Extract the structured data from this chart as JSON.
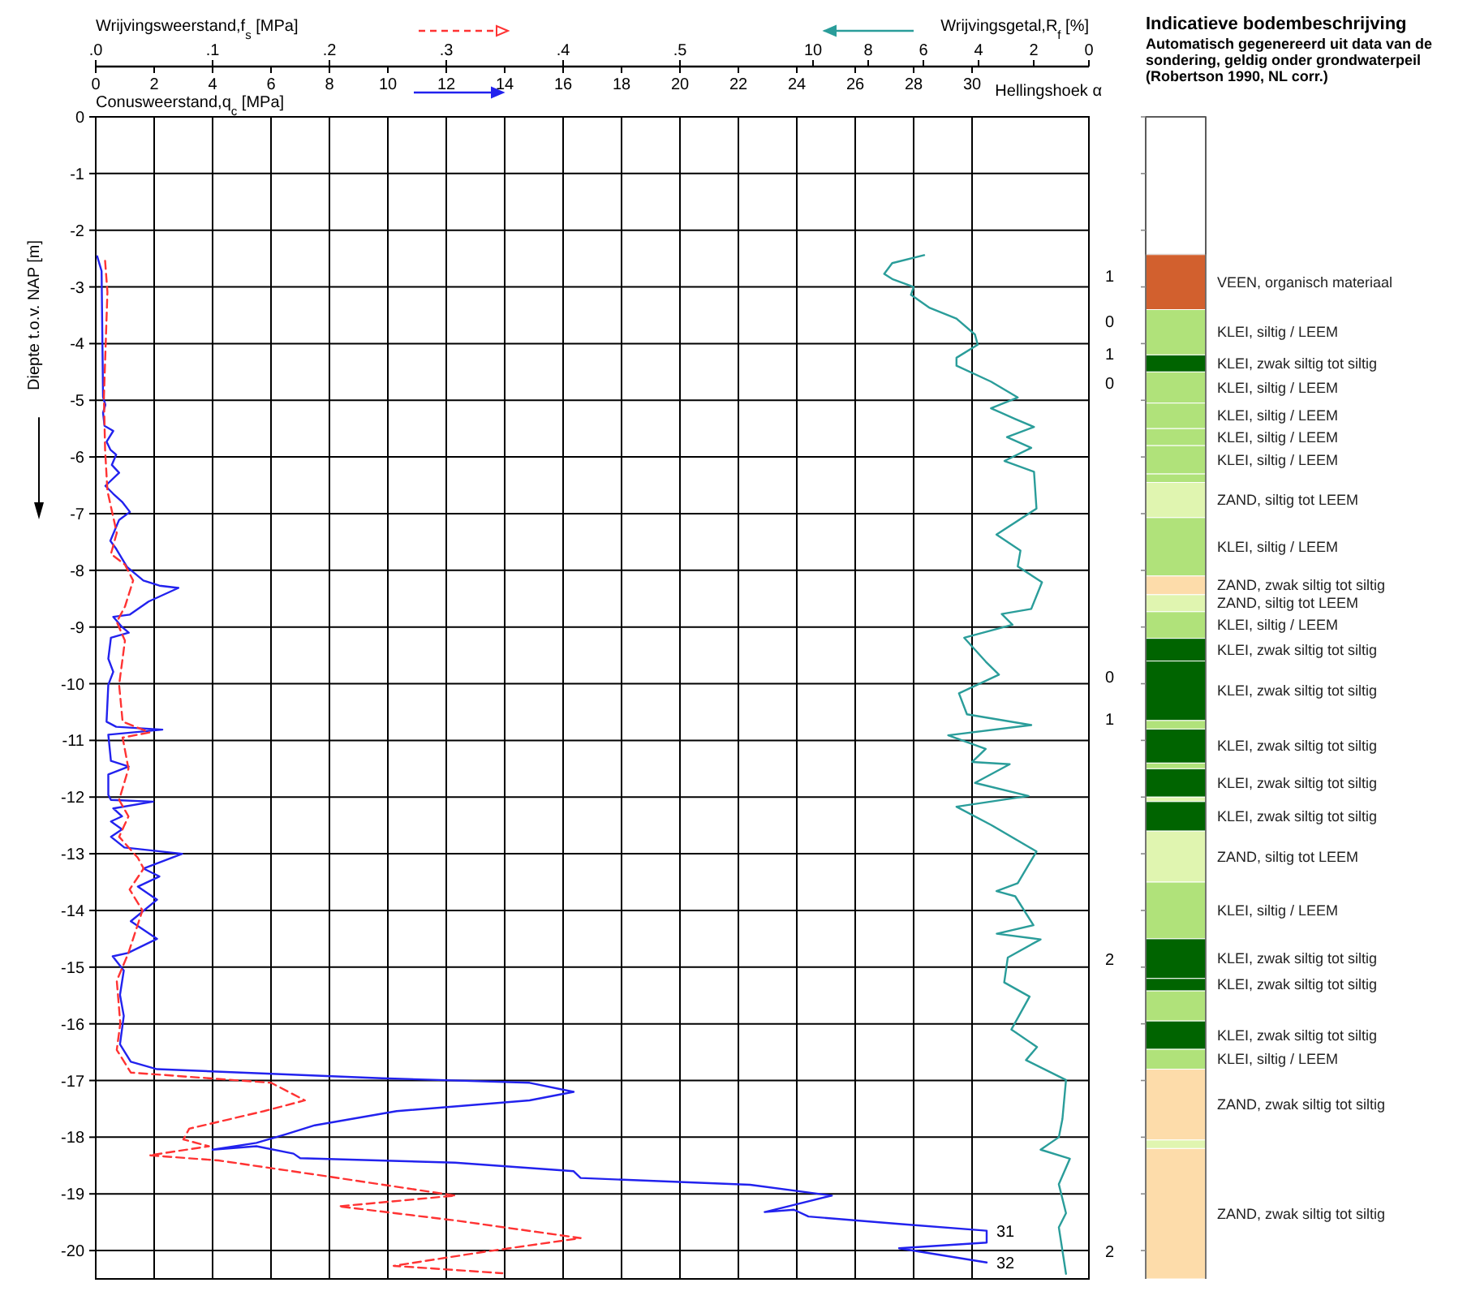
{
  "chart_data": [
    {
      "type": "line",
      "xlabel": "Conusweerstand,q$_{c}$ [MPa]",
      "x2label": "Wrijvingsweerstand,f$_{s}$ [MPa]",
      "ylabel": "Diepte t.o.v. NAP [m]",
      "xlim": [
        0,
        34
      ],
      "xticks": [
        0,
        2,
        4,
        6,
        8,
        10,
        12,
        14,
        16,
        18,
        20,
        22,
        24,
        26,
        28,
        30
      ],
      "x2lim": [
        0,
        0.85
      ],
      "x2ticks": [
        {
          "value": 0,
          "label": ".0"
        },
        {
          "value": 0.1,
          "label": ".1"
        },
        {
          "value": 0.2,
          "label": ".2"
        },
        {
          "value": 0.3,
          "label": ".3"
        },
        {
          "value": 0.4,
          "label": ".4"
        },
        {
          "value": 0.5,
          "label": ".5"
        }
      ],
      "ylim": [
        -20.5,
        0
      ],
      "yticks": [
        0,
        -1,
        -2,
        -3,
        -4,
        -5,
        -6,
        -7,
        -8,
        -9,
        -10,
        -11,
        -12,
        -13,
        -14,
        -15,
        -16,
        -17,
        -18,
        -19,
        -20
      ],
      "grid": true,
      "marker": "none",
      "series": [
        {
          "color": "#2222ee",
          "line_style": "solid",
          "x": [
            0.05,
            0.2,
            0.25,
            0.33,
            0.25,
            0.3,
            0.6,
            0.37,
            0.5,
            0.7,
            0.55,
            0.8,
            0.33,
            0.6,
            0.9,
            1.17,
            0.8,
            0.5,
            0.7,
            1.07,
            1.63,
            2.18,
            2.83,
            1.81,
            1.17,
            0.6,
            0.9,
            1.13,
            0.52,
            0.43,
            0.6,
            0.43,
            0.37,
            0.7,
            2.28,
            0.43,
            0.52,
            1.13,
            0.43,
            0.43,
            0.52,
            1.96,
            0.6,
            0.9,
            0.52,
            0.9,
            0.52,
            0.98,
            2.96,
            1.63,
            2.18,
            1.44,
            2.1,
            1.2,
            2.1,
            1.1,
            0.58,
            0.96,
            0.83,
            0.96,
            0.83,
            1.2,
            2.1,
            9.8,
            14.85,
            16.36,
            14.85,
            10.3,
            7.5,
            6.5,
            5.5,
            4.0,
            5.5,
            6.77,
            7.0,
            12.3,
            16.36,
            16.6,
            22.4,
            25.2,
            23.7,
            22.9,
            23.9,
            24.4,
            27.5,
            30.5,
            30.5,
            27.5,
            30.5
          ],
          "values": [
            -2.46,
            -2.72,
            -4.94,
            -5.08,
            -5.22,
            -5.45,
            -5.54,
            -5.73,
            -5.87,
            -5.96,
            -6.14,
            -6.28,
            -6.51,
            -6.65,
            -6.79,
            -6.97,
            -7.11,
            -7.48,
            -7.62,
            -7.94,
            -8.18,
            -8.27,
            -8.31,
            -8.55,
            -8.78,
            -8.82,
            -9.0,
            -9.1,
            -9.19,
            -9.56,
            -9.79,
            -10.02,
            -10.67,
            -10.76,
            -10.81,
            -10.9,
            -11.36,
            -11.46,
            -11.6,
            -11.96,
            -12.05,
            -12.08,
            -12.2,
            -12.34,
            -12.43,
            -12.57,
            -12.7,
            -12.89,
            -13.0,
            -13.26,
            -13.4,
            -13.58,
            -13.81,
            -14.19,
            -14.5,
            -14.75,
            -14.81,
            -15.06,
            -15.49,
            -15.86,
            -16.36,
            -16.67,
            -16.8,
            -16.96,
            -17.04,
            -17.2,
            -17.35,
            -17.54,
            -17.79,
            -17.95,
            -18.1,
            -18.22,
            -18.16,
            -18.29,
            -18.37,
            -18.45,
            -18.6,
            -18.72,
            -18.84,
            -19.03,
            -19.22,
            -19.32,
            -19.28,
            -19.4,
            -19.53,
            -19.65,
            -19.86,
            -19.96,
            -20.21
          ]
        },
        {
          "color": "#ff3333",
          "line_style": "dashed",
          "axis": "x2",
          "x": [
            0.008,
            0.01,
            0.007,
            0.008,
            0.01,
            0.018,
            0.013,
            0.025,
            0.032,
            0.025,
            0.018,
            0.025,
            0.02,
            0.023,
            0.046,
            0.023,
            0.028,
            0.02,
            0.028,
            0.02,
            0.036,
            0.041,
            0.029,
            0.04,
            0.034,
            0.028,
            0.018,
            0.021,
            0.018,
            0.03,
            0.15,
            0.179,
            0.144,
            0.08,
            0.075,
            0.097,
            0.046,
            0.105,
            0.188,
            0.308,
            0.208,
            0.308,
            0.415,
            0.333,
            0.255,
            0.348
          ],
          "values": [
            -2.54,
            -3.09,
            -4.94,
            -5.87,
            -6.6,
            -7.34,
            -7.71,
            -7.9,
            -8.18,
            -8.64,
            -8.91,
            -9.24,
            -10.02,
            -10.67,
            -10.86,
            -10.95,
            -11.5,
            -12.05,
            -12.34,
            -12.7,
            -13.07,
            -13.26,
            -13.63,
            -14.0,
            -14.37,
            -14.75,
            -15.24,
            -15.99,
            -16.46,
            -16.86,
            -17.04,
            -17.35,
            -17.54,
            -17.85,
            -18.04,
            -18.16,
            -18.32,
            -18.41,
            -18.66,
            -19.03,
            -19.22,
            -19.47,
            -19.78,
            -20.02,
            -20.27,
            -20.4
          ]
        }
      ],
      "annotations": [
        "Hellingshoek α",
        "1",
        "0",
        "1",
        "0",
        "0",
        "1",
        "2",
        "2",
        {
          "text": "31",
          "x": 30.5,
          "y": -19.65
        },
        {
          "text": "32",
          "x": 30.5,
          "y": -20.21
        }
      ]
    },
    {
      "type": "line",
      "xlabel": "Wrijvingsgetal,R$_{f}$ [%]",
      "xlim": [
        36,
        0
      ],
      "xticks": [
        10,
        8,
        6,
        4,
        2,
        0
      ],
      "ylim": [
        -20.5,
        0
      ],
      "tick_labels": "x",
      "series": [
        {
          "color": "#2a9d9a",
          "line_style": "solid",
          "x": [
            5.97,
            7.13,
            7.42,
            7.13,
            6.35,
            6.45,
            5.77,
            4.8,
            4.13,
            4.03,
            4.8,
            4.8,
            3.55,
            2.58,
            3.55,
            2.67,
            1.99,
            2.97,
            2.09,
            3.06,
            1.99,
            1.9,
            3.35,
            2.48,
            2.58,
            1.7,
            2.09,
            3.16,
            2.77,
            4.52,
            3.74,
            3.26,
            4.71,
            4.42,
            2.09,
            5.1,
            3.74,
            4.23,
            2.87,
            4.13,
            2.19,
            4.8,
            3.55,
            1.9,
            2.58,
            3.35,
            2.67,
            2.01,
            3.34,
            1.75,
            2.94,
            3.07,
            2.15,
            2.81,
            1.88,
            2.28,
            0.83,
            0.96,
            1.09,
            1.75,
            0.69,
            1.09,
            0.83,
            1.09,
            0.83
          ],
          "values": [
            -2.44,
            -2.58,
            -2.77,
            -2.86,
            -3.0,
            -3.14,
            -3.37,
            -3.56,
            -3.84,
            -4.02,
            -4.25,
            -4.39,
            -4.67,
            -4.95,
            -5.14,
            -5.33,
            -5.47,
            -5.65,
            -5.84,
            -6.07,
            -6.26,
            -6.91,
            -7.37,
            -7.65,
            -7.93,
            -8.21,
            -8.68,
            -8.77,
            -8.96,
            -9.19,
            -9.61,
            -9.84,
            -10.17,
            -10.54,
            -10.73,
            -10.91,
            -11.15,
            -11.38,
            -11.42,
            -11.75,
            -11.98,
            -12.17,
            -12.49,
            -12.96,
            -13.52,
            -13.66,
            -13.75,
            -14.26,
            -14.41,
            -14.51,
            -14.83,
            -15.27,
            -15.52,
            -16.1,
            -16.41,
            -16.64,
            -16.99,
            -17.68,
            -18.0,
            -18.22,
            -18.38,
            -18.83,
            -19.34,
            -19.59,
            -20.41
          ]
        }
      ]
    },
    {
      "type": "bar",
      "stacked": true,
      "ylim": [
        -20.5,
        0
      ],
      "yticks": [
        0,
        -1,
        -2,
        -3,
        -4,
        -5,
        -6,
        -7,
        -8,
        -9,
        -10,
        -11,
        -12,
        -13,
        -14,
        -15,
        -16,
        -17,
        -18,
        -19,
        -20
      ],
      "tick_labels": false,
      "title": "Indicatieve bodembeschrijving",
      "subtitle": "Automatisch gegenereerd uit data van de sondering, geldig onder grondwaterpeil (Robertson 1990, NL corr.)",
      "categories": [
        null
      ],
      "series": [
        {
          "color": "#ffffff",
          "values": [
            -2.43
          ]
        },
        {
          "name": "VEEN, organisch materiaal",
          "color": "#d2602e",
          "values": [
            -0.97
          ]
        },
        {
          "name": "KLEI, siltig / LEEM",
          "color": "#b0e27a",
          "values": [
            -0.8
          ]
        },
        {
          "name": "KLEI, zwak siltig tot siltig",
          "color": "#006400",
          "values": [
            -0.3
          ]
        },
        {
          "name": "KLEI, siltig / LEEM",
          "color": "#b0e27a",
          "values": [
            -0.55
          ]
        },
        {
          "name": "KLEI, siltig / LEEM",
          "color": "#b0e27a",
          "values": [
            -0.45
          ]
        },
        {
          "name": "KLEI, siltig / LEEM",
          "color": "#b0e27a",
          "values": [
            -0.3
          ]
        },
        {
          "name": "KLEI, siltig / LEEM",
          "color": "#b0e27a",
          "values": [
            -0.5
          ]
        },
        {
          "color": "#b0e27a",
          "values": [
            -0.15
          ]
        },
        {
          "name": "ZAND, siltig tot LEEM",
          "color": "#e0f5b0",
          "values": [
            -0.62
          ]
        },
        {
          "name": "KLEI, siltig / LEEM",
          "color": "#b0e27a",
          "values": [
            -1.03
          ]
        },
        {
          "name": "ZAND, zwak siltig tot siltig",
          "color": "#fddcaa",
          "values": [
            -0.33
          ]
        },
        {
          "name": "ZAND, siltig tot LEEM",
          "color": "#e0f5b0",
          "values": [
            -0.3
          ]
        },
        {
          "name": "KLEI, siltig / LEEM",
          "color": "#b0e27a",
          "values": [
            -0.47
          ]
        },
        {
          "name": "KLEI, zwak siltig tot siltig",
          "color": "#006400",
          "values": [
            -0.4
          ]
        },
        {
          "name": "KLEI, zwak siltig tot siltig",
          "color": "#006400",
          "values": [
            -1.05
          ]
        },
        {
          "color": "#b0e27a",
          "values": [
            -0.15
          ]
        },
        {
          "name": "KLEI, zwak siltig tot siltig",
          "color": "#006400",
          "values": [
            -0.6
          ]
        },
        {
          "color": "#b0e27a",
          "values": [
            -0.1
          ]
        },
        {
          "name": "KLEI, zwak siltig tot siltig",
          "color": "#006400",
          "values": [
            -0.5
          ]
        },
        {
          "color": "#e0f5b0",
          "values": [
            -0.08
          ]
        },
        {
          "name": "KLEI, zwak siltig tot siltig",
          "color": "#006400",
          "values": [
            -0.52
          ]
        },
        {
          "name": "ZAND, siltig tot LEEM",
          "color": "#e0f5b0",
          "values": [
            -0.9
          ]
        },
        {
          "name": "KLEI, siltig / LEEM",
          "color": "#b0e27a",
          "values": [
            -1.0
          ]
        },
        {
          "name": "KLEI, zwak siltig tot siltig",
          "color": "#006400",
          "values": [
            -0.7
          ]
        },
        {
          "name": "KLEI, zwak siltig tot siltig",
          "color": "#006400",
          "values": [
            -0.22
          ]
        },
        {
          "color": "#b0e27a",
          "values": [
            -0.53
          ]
        },
        {
          "name": "KLEI, zwak siltig tot siltig",
          "color": "#006400",
          "values": [
            -0.5
          ]
        },
        {
          "name": "KLEI, siltig / LEEM",
          "color": "#b0e27a",
          "values": [
            -0.35
          ]
        },
        {
          "name": "ZAND, zwak siltig tot siltig",
          "color": "#fddcaa",
          "values": [
            -1.25
          ]
        },
        {
          "color": "#e0f5b0",
          "values": [
            -0.15
          ]
        },
        {
          "name": "ZAND, zwak siltig tot siltig",
          "color": "#fddcaa",
          "values": [
            -2.3
          ]
        }
      ]
    }
  ]
}
